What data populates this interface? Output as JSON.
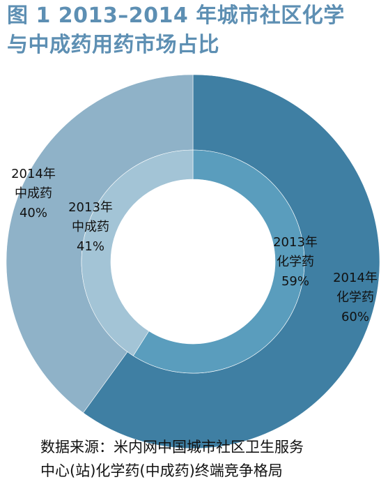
{
  "title": {
    "line1": "图 1 2013–2014 年城市社区化学",
    "line2": "与中成药用药市场占比"
  },
  "source": {
    "line1": "数据来源：米内网中国城市社区卫生服务",
    "line2": "中心(站)化学药(中成药)终端竞争格局"
  },
  "colors": {
    "outer_chemical": "#3f7fa3",
    "outer_tcm": "#8fb2c8",
    "inner_chemical": "#5a9dbd",
    "inner_tcm": "#a3c4d6"
  },
  "chart_data": {
    "type": "pie",
    "title": "图 1 2013–2014 年城市社区化学与中成药用药市场占比",
    "rings": [
      {
        "name": "2014年",
        "slices": [
          {
            "label_lines": [
              "2014年",
              "化学药",
              "60%"
            ],
            "category": "化学药",
            "value": 60
          },
          {
            "label_lines": [
              "2014年",
              "中成药",
              "40%"
            ],
            "category": "中成药",
            "value": 40
          }
        ]
      },
      {
        "name": "2013年",
        "slices": [
          {
            "label_lines": [
              "2013年",
              "化学药",
              "59%"
            ],
            "category": "化学药",
            "value": 59
          },
          {
            "label_lines": [
              "2013年",
              "中成药",
              "41%"
            ],
            "category": "中成药",
            "value": 41
          }
        ]
      }
    ]
  }
}
